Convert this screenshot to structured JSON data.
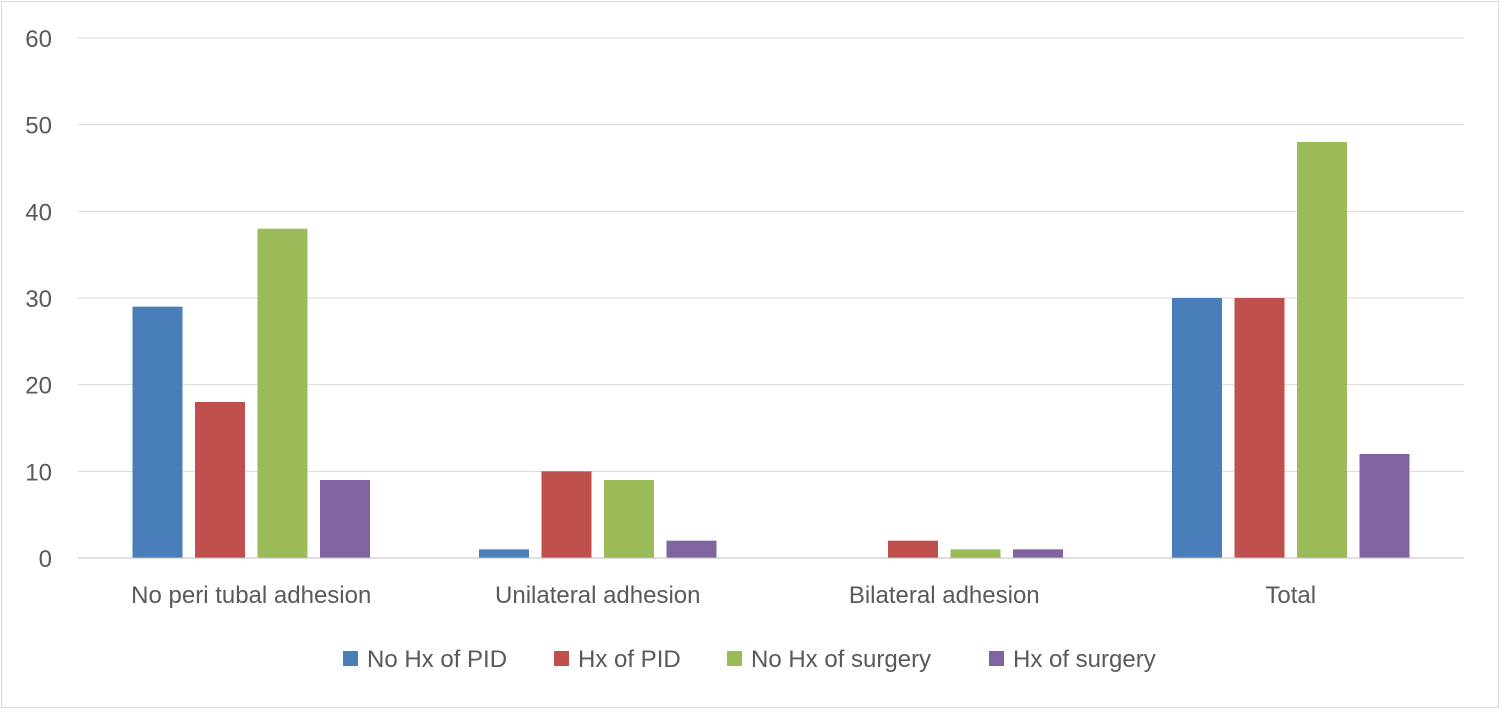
{
  "chart_data": {
    "type": "bar",
    "title": "",
    "xlabel": "",
    "ylabel": "",
    "categories": [
      "No peri tubal adhesion",
      "Unilateral adhesion",
      "Bilateral adhesion",
      "Total"
    ],
    "series": [
      {
        "name": "No Hx of PID",
        "color": "#4a7ebb",
        "values": [
          29,
          1,
          0,
          30
        ]
      },
      {
        "name": "Hx of PID",
        "color": "#c0504d",
        "values": [
          18,
          10,
          2,
          30
        ]
      },
      {
        "name": "No Hx of surgery",
        "color": "#9bbb59",
        "values": [
          38,
          9,
          1,
          48
        ]
      },
      {
        "name": "Hx of surgery",
        "color": "#8064a2",
        "values": [
          9,
          2,
          1,
          12
        ]
      }
    ],
    "ylim": [
      0,
      60
    ],
    "yticks": [
      0,
      10,
      20,
      30,
      40,
      50,
      60
    ],
    "grid": true,
    "legend_position": "bottom",
    "colors": {
      "grid": "#d9d9d9",
      "axis": "#bfbfbf",
      "text": "#595959"
    }
  }
}
